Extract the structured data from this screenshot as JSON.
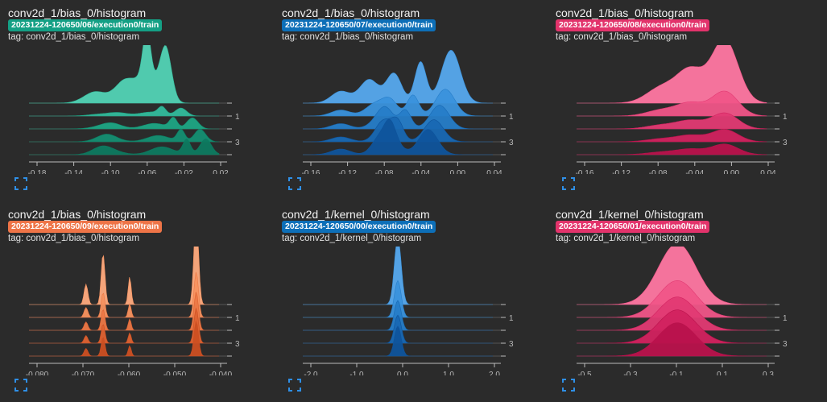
{
  "cards": [
    {
      "title": "conv2d_1/bias_0/histogram",
      "run": "20231224-120650/06/execution0/train",
      "tag": "tag: conv2d_1/bias_0/histogram",
      "color": "#14a085",
      "palette": [
        "#52d3b5",
        "#33bb9c",
        "#1ea584",
        "#148f72",
        "#0d7a60"
      ],
      "x_ticks": [
        "-0.18",
        "-0.14",
        "-0.10",
        "-0.06",
        "-0.02",
        "0.02"
      ],
      "y_ticks": [
        "1",
        "3"
      ],
      "shape": "rugged_right",
      "expand_icon": "fullscreen-icon"
    },
    {
      "title": "conv2d_1/bias_0/histogram",
      "run": "20231224-120650/07/execution0/train",
      "tag": "tag: conv2d_1/bias_0/histogram",
      "color": "#0d6fb8",
      "palette": [
        "#56a9ee",
        "#3a92dc",
        "#267dc8",
        "#1868b3",
        "#0f549c"
      ],
      "x_ticks": [
        "-0.16",
        "-0.12",
        "-0.08",
        "-0.04",
        "0.00",
        "0.04"
      ],
      "y_ticks": [
        "1",
        "3"
      ],
      "shape": "rugged_mid",
      "expand_icon": "fullscreen-icon"
    },
    {
      "title": "conv2d_1/bias_0/histogram",
      "run": "20231224-120650/08/execution0/train",
      "tag": "tag: conv2d_1/bias_0/histogram",
      "color": "#e2336b",
      "palette": [
        "#ff77a2",
        "#f05588",
        "#e23a73",
        "#d2225f",
        "#b9124c"
      ],
      "x_ticks": [
        "-0.16",
        "-0.12",
        "-0.08",
        "-0.04",
        "0.00",
        "0.04"
      ],
      "y_ticks": [
        "1",
        "3"
      ],
      "shape": "smooth_right",
      "expand_icon": "fullscreen-icon"
    },
    {
      "title": "conv2d_1/bias_0/histogram",
      "run": "20231224-120650/09/execution0/train",
      "tag": "tag: conv2d_1/bias_0/histogram",
      "color": "#ee7447",
      "palette": [
        "#ffab7e",
        "#f7925f",
        "#ec7846",
        "#de6232",
        "#cc4f22"
      ],
      "x_ticks": [
        "-0.080",
        "-0.070",
        "-0.060",
        "-0.050",
        "-0.040"
      ],
      "y_ticks": [
        "1",
        "3"
      ],
      "shape": "spikes",
      "expand_icon": "fullscreen-icon"
    },
    {
      "title": "conv2d_1/kernel_0/histogram",
      "run": "20231224-120650/00/execution0/train",
      "tag": "tag: conv2d_1/kernel_0/histogram",
      "color": "#0d6fb8",
      "palette": [
        "#56a9ee",
        "#3a92dc",
        "#267dc8",
        "#1868b3",
        "#0f549c"
      ],
      "x_ticks": [
        "-2.0",
        "-1.0",
        "0.0",
        "1.0",
        "2.0"
      ],
      "y_ticks": [
        "1",
        "3"
      ],
      "shape": "narrow",
      "expand_icon": "fullscreen-icon"
    },
    {
      "title": "conv2d_1/kernel_0/histogram",
      "run": "20231224-120650/01/execution0/train",
      "tag": "tag: conv2d_1/kernel_0/histogram",
      "color": "#e2336b",
      "palette": [
        "#ff77a2",
        "#f05588",
        "#e23a73",
        "#d2225f",
        "#b9124c"
      ],
      "x_ticks": [
        "-0.5",
        "-0.3",
        "-0.1",
        "0.1",
        "0.3"
      ],
      "y_ticks": [
        "1",
        "3"
      ],
      "shape": "wide",
      "expand_icon": "fullscreen-icon"
    }
  ]
}
